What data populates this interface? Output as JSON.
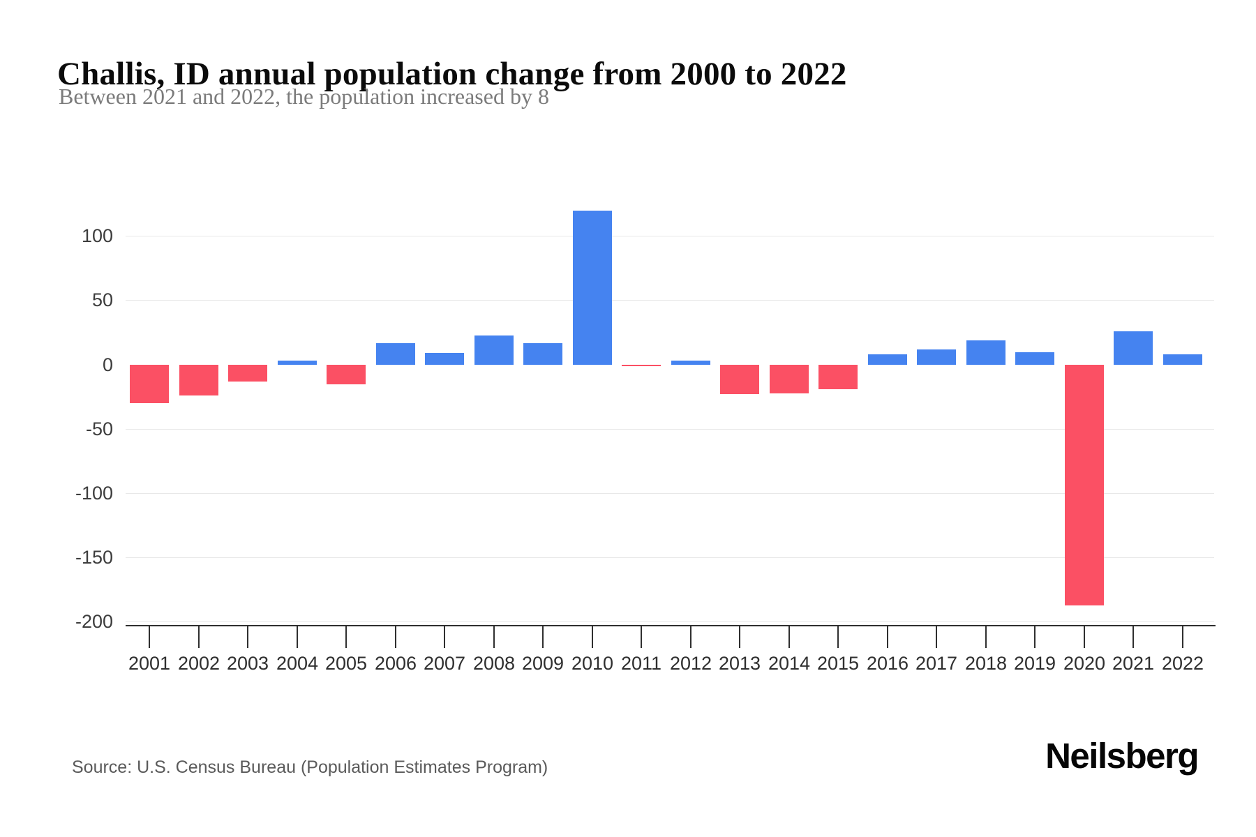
{
  "page": {
    "title": "Challis, ID annual population change from 2000 to 2022",
    "subtitle": "Between 2021 and 2022, the population increased by 8",
    "source": "Source: U.S. Census Bureau (Population Estimates Program)",
    "brand": "Neilsberg"
  },
  "colors": {
    "positive_bar": "#4583f0",
    "negative_bar": "#fb5064",
    "gridline": "#e8e8e8",
    "axis": "#2f2f2f"
  },
  "chart_data": {
    "type": "bar",
    "title": "Challis, ID annual population change from 2000 to 2022",
    "subtitle": "Between 2021 and 2022, the population increased by 8",
    "xlabel": "",
    "ylabel": "",
    "categories": [
      "2001",
      "2002",
      "2003",
      "2004",
      "2005",
      "2006",
      "2007",
      "2008",
      "2009",
      "2010",
      "2011",
      "2012",
      "2013",
      "2014",
      "2015",
      "2016",
      "2017",
      "2018",
      "2019",
      "2020",
      "2021",
      "2022"
    ],
    "values": [
      -30,
      -24,
      -13,
      3,
      -15,
      17,
      9,
      23,
      17,
      120,
      -1,
      3,
      -23,
      -22,
      -19,
      8,
      12,
      19,
      10,
      -187,
      26,
      8
    ],
    "ylim": [
      -203,
      137
    ],
    "yticks": [
      100,
      50,
      0,
      -50,
      -100,
      -150,
      -200
    ],
    "grid": "horizontal gridlines at labeled ticks except 0",
    "legend": "none",
    "positive_color": "#4583f0",
    "negative_color": "#fb5064"
  }
}
